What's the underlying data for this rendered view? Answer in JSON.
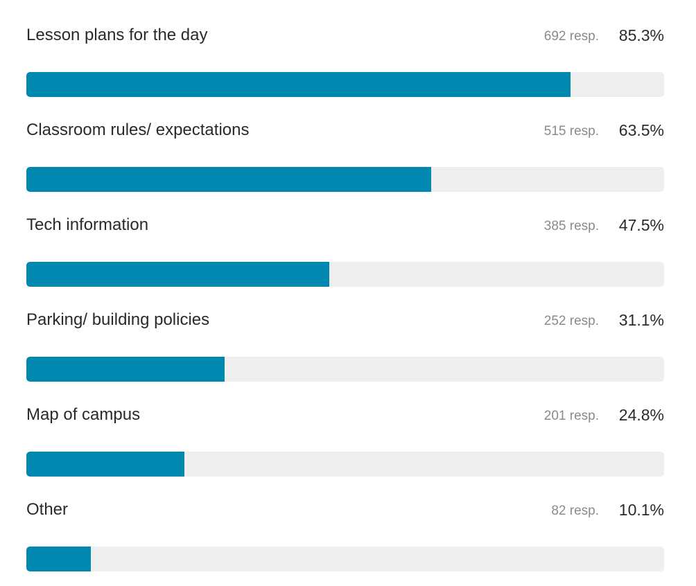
{
  "colors": {
    "bar_fill": "#0088b0",
    "track": "#efefef",
    "label_text": "#2a2a2a",
    "resp_text": "#8a8a8a"
  },
  "chart_data": {
    "type": "bar",
    "orientation": "horizontal",
    "categories": [
      "Lesson plans for the day",
      "Classroom rules/ expectations",
      "Tech information",
      "Parking/ building policies",
      "Map of campus",
      "Other"
    ],
    "responses": [
      692,
      515,
      385,
      252,
      201,
      82
    ],
    "response_labels": [
      "692 resp.",
      "515 resp.",
      "385 resp.",
      "252 resp.",
      "201 resp.",
      "82 resp."
    ],
    "values": [
      85.3,
      63.5,
      47.5,
      31.1,
      24.8,
      10.1
    ],
    "value_labels": [
      "85.3%",
      "63.5%",
      "47.5%",
      "31.1%",
      "24.8%",
      "10.1%"
    ],
    "xlim": [
      0,
      100
    ],
    "grid": false,
    "legend": "none"
  }
}
